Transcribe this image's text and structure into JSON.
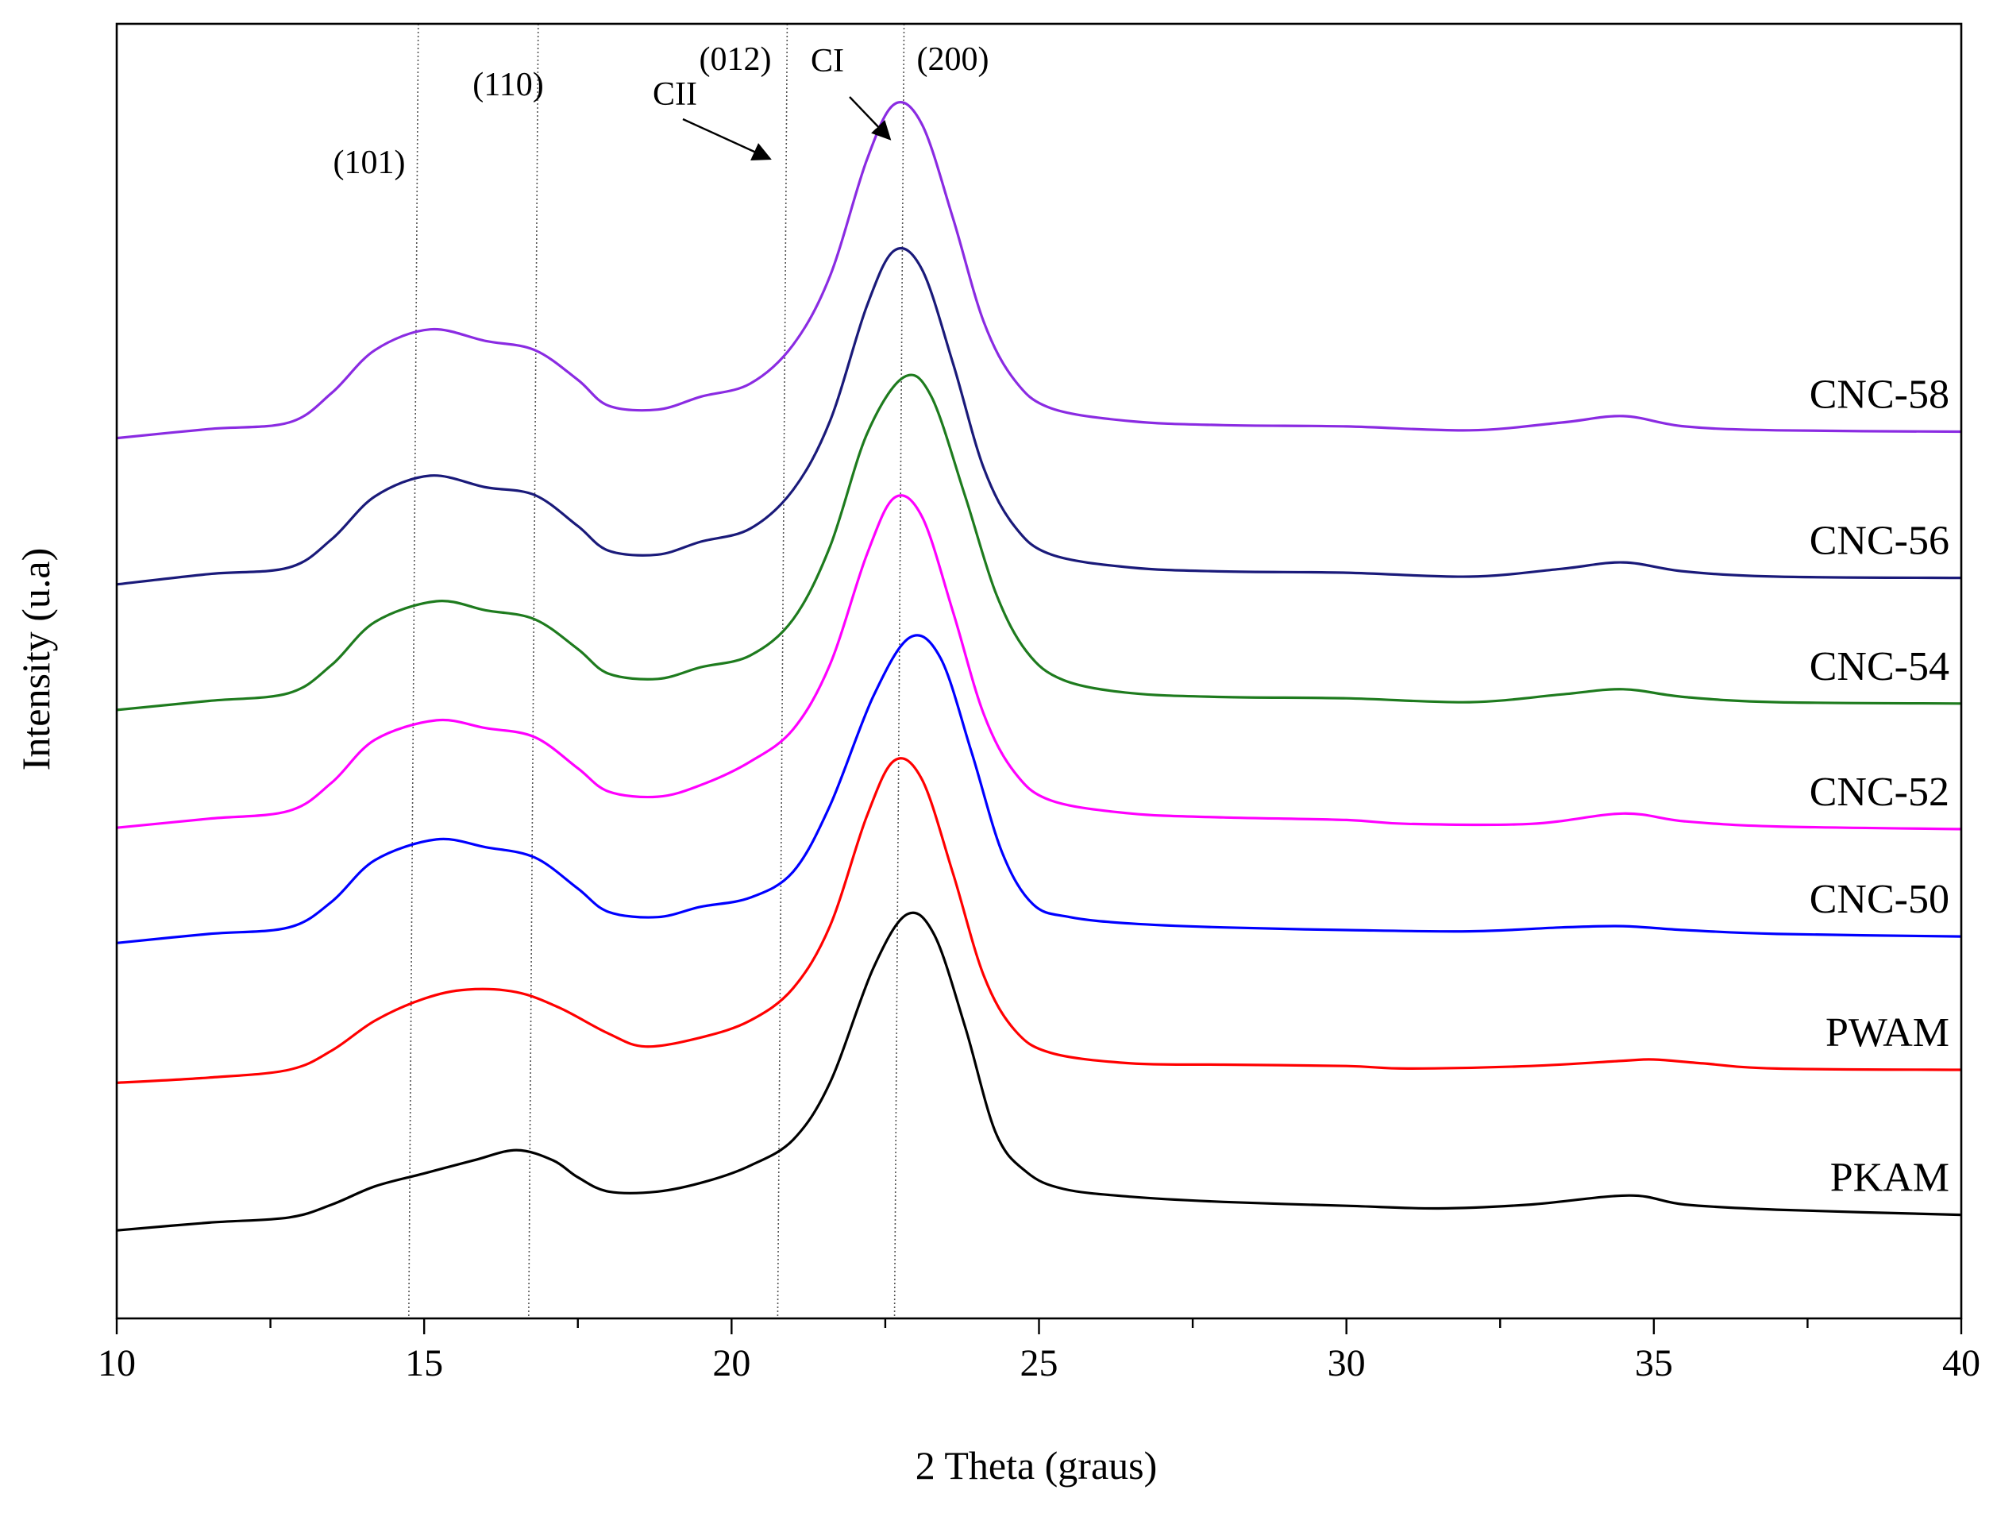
{
  "chart_data": {
    "type": "line",
    "title": "",
    "xlabel": "2 Theta (graus)",
    "ylabel": "Intensity (u.a)",
    "xlim": [
      10,
      40
    ],
    "ylim": [
      0,
      10
    ],
    "x_ticks": [
      10,
      15,
      20,
      25,
      30,
      35,
      40
    ],
    "x_tick_labels": [
      "10",
      "15",
      "20",
      "25",
      "30",
      "35",
      "40"
    ],
    "x_minor_step": 2.5,
    "grid": false,
    "legend": "labels at right end of each curve",
    "y_tick_labels_shown": false,
    "series": [
      {
        "name": "CNC-58",
        "color": "#8A2BE2",
        "points": [
          [
            10,
            6.8
          ],
          [
            11.5,
            6.87
          ],
          [
            12.8,
            6.92
          ],
          [
            13.5,
            7.15
          ],
          [
            14.2,
            7.48
          ],
          [
            15.1,
            7.64
          ],
          [
            16,
            7.55
          ],
          [
            16.8,
            7.48
          ],
          [
            17.5,
            7.25
          ],
          [
            18,
            7.05
          ],
          [
            18.8,
            7.02
          ],
          [
            19.5,
            7.12
          ],
          [
            20.3,
            7.22
          ],
          [
            21,
            7.52
          ],
          [
            21.6,
            8.05
          ],
          [
            22.2,
            8.95
          ],
          [
            22.65,
            9.38
          ],
          [
            23.1,
            9.22
          ],
          [
            23.6,
            8.5
          ],
          [
            24.1,
            7.7
          ],
          [
            24.6,
            7.25
          ],
          [
            25.2,
            7.03
          ],
          [
            26.5,
            6.93
          ],
          [
            28,
            6.9
          ],
          [
            30,
            6.89
          ],
          [
            32,
            6.86
          ],
          [
            33.5,
            6.92
          ],
          [
            34.5,
            6.97
          ],
          [
            35.5,
            6.89
          ],
          [
            37,
            6.86
          ],
          [
            40,
            6.85
          ]
        ]
      },
      {
        "name": "CNC-56",
        "color": "#1A1A7A",
        "points": [
          [
            10,
            5.67
          ],
          [
            11.5,
            5.75
          ],
          [
            12.8,
            5.8
          ],
          [
            13.5,
            6.02
          ],
          [
            14.2,
            6.35
          ],
          [
            15.1,
            6.51
          ],
          [
            16,
            6.42
          ],
          [
            16.8,
            6.36
          ],
          [
            17.5,
            6.12
          ],
          [
            18,
            5.93
          ],
          [
            18.8,
            5.9
          ],
          [
            19.5,
            6.0
          ],
          [
            20.3,
            6.1
          ],
          [
            21,
            6.4
          ],
          [
            21.6,
            6.93
          ],
          [
            22.2,
            7.82
          ],
          [
            22.65,
            8.25
          ],
          [
            23.1,
            8.1
          ],
          [
            23.6,
            7.38
          ],
          [
            24.1,
            6.57
          ],
          [
            24.6,
            6.12
          ],
          [
            25.2,
            5.9
          ],
          [
            26.5,
            5.8
          ],
          [
            28,
            5.77
          ],
          [
            30,
            5.76
          ],
          [
            32,
            5.73
          ],
          [
            33.5,
            5.79
          ],
          [
            34.5,
            5.84
          ],
          [
            35.5,
            5.77
          ],
          [
            37,
            5.73
          ],
          [
            40,
            5.72
          ]
        ]
      },
      {
        "name": "CNC-54",
        "color": "#1E7B1E",
        "points": [
          [
            10,
            4.7
          ],
          [
            11.5,
            4.77
          ],
          [
            12.8,
            4.83
          ],
          [
            13.5,
            5.05
          ],
          [
            14.2,
            5.38
          ],
          [
            15.2,
            5.54
          ],
          [
            16,
            5.47
          ],
          [
            16.8,
            5.4
          ],
          [
            17.5,
            5.17
          ],
          [
            18,
            4.98
          ],
          [
            18.8,
            4.94
          ],
          [
            19.5,
            5.03
          ],
          [
            20.3,
            5.12
          ],
          [
            21,
            5.4
          ],
          [
            21.6,
            5.96
          ],
          [
            22.2,
            6.83
          ],
          [
            22.8,
            7.27
          ],
          [
            23.25,
            7.12
          ],
          [
            23.8,
            6.35
          ],
          [
            24.3,
            5.6
          ],
          [
            24.8,
            5.15
          ],
          [
            25.4,
            4.93
          ],
          [
            26.5,
            4.83
          ],
          [
            28,
            4.8
          ],
          [
            30,
            4.79
          ],
          [
            32,
            4.76
          ],
          [
            33.5,
            4.82
          ],
          [
            34.5,
            4.86
          ],
          [
            35.5,
            4.8
          ],
          [
            37,
            4.76
          ],
          [
            40,
            4.75
          ]
        ]
      },
      {
        "name": "CNC-52",
        "color": "#FF00FF",
        "points": [
          [
            10,
            3.79
          ],
          [
            11.5,
            3.86
          ],
          [
            12.8,
            3.92
          ],
          [
            13.5,
            4.14
          ],
          [
            14.2,
            4.47
          ],
          [
            15.2,
            4.62
          ],
          [
            16,
            4.56
          ],
          [
            16.8,
            4.49
          ],
          [
            17.5,
            4.25
          ],
          [
            18,
            4.07
          ],
          [
            18.8,
            4.03
          ],
          [
            19.5,
            4.12
          ],
          [
            20.3,
            4.3
          ],
          [
            21,
            4.55
          ],
          [
            21.6,
            5.05
          ],
          [
            22.2,
            5.9
          ],
          [
            22.65,
            6.34
          ],
          [
            23.1,
            6.19
          ],
          [
            23.6,
            5.46
          ],
          [
            24.1,
            4.67
          ],
          [
            24.6,
            4.22
          ],
          [
            25.2,
            4.0
          ],
          [
            26.5,
            3.9
          ],
          [
            28,
            3.87
          ],
          [
            30,
            3.85
          ],
          [
            31,
            3.82
          ],
          [
            33,
            3.82
          ],
          [
            34.5,
            3.9
          ],
          [
            35.5,
            3.84
          ],
          [
            37,
            3.8
          ],
          [
            40,
            3.78
          ]
        ]
      },
      {
        "name": "CNC-50",
        "color": "#0000FF",
        "points": [
          [
            10,
            2.9
          ],
          [
            11.5,
            2.97
          ],
          [
            12.8,
            3.02
          ],
          [
            13.5,
            3.22
          ],
          [
            14.2,
            3.54
          ],
          [
            15.2,
            3.7
          ],
          [
            16,
            3.64
          ],
          [
            16.8,
            3.56
          ],
          [
            17.5,
            3.32
          ],
          [
            18,
            3.14
          ],
          [
            18.8,
            3.1
          ],
          [
            19.5,
            3.18
          ],
          [
            20.3,
            3.25
          ],
          [
            21,
            3.45
          ],
          [
            21.6,
            3.96
          ],
          [
            22.3,
            4.8
          ],
          [
            22.9,
            5.26
          ],
          [
            23.4,
            5.1
          ],
          [
            23.9,
            4.38
          ],
          [
            24.4,
            3.6
          ],
          [
            24.9,
            3.2
          ],
          [
            25.5,
            3.1
          ],
          [
            26.5,
            3.05
          ],
          [
            28,
            3.02
          ],
          [
            30,
            3.0
          ],
          [
            32,
            2.99
          ],
          [
            33.5,
            3.02
          ],
          [
            34.5,
            3.03
          ],
          [
            35.5,
            3.0
          ],
          [
            37,
            2.97
          ],
          [
            40,
            2.95
          ]
        ]
      },
      {
        "name": "PWAM",
        "color": "#FF0000",
        "points": [
          [
            10,
            1.82
          ],
          [
            11.5,
            1.86
          ],
          [
            12.8,
            1.92
          ],
          [
            13.5,
            2.07
          ],
          [
            14.2,
            2.3
          ],
          [
            15,
            2.47
          ],
          [
            15.7,
            2.54
          ],
          [
            16.5,
            2.52
          ],
          [
            17.2,
            2.4
          ],
          [
            18,
            2.2
          ],
          [
            18.6,
            2.1
          ],
          [
            19.5,
            2.17
          ],
          [
            20.3,
            2.3
          ],
          [
            21,
            2.55
          ],
          [
            21.6,
            3.03
          ],
          [
            22.2,
            3.88
          ],
          [
            22.65,
            4.31
          ],
          [
            23.1,
            4.16
          ],
          [
            23.6,
            3.44
          ],
          [
            24.1,
            2.65
          ],
          [
            24.6,
            2.23
          ],
          [
            25.2,
            2.05
          ],
          [
            26.5,
            1.97
          ],
          [
            28,
            1.96
          ],
          [
            30,
            1.95
          ],
          [
            31,
            1.93
          ],
          [
            33,
            1.95
          ],
          [
            34.5,
            1.99
          ],
          [
            35,
            2.0
          ],
          [
            35.8,
            1.97
          ],
          [
            37,
            1.93
          ],
          [
            40,
            1.92
          ]
        ]
      },
      {
        "name": "PKAM",
        "color": "#000000",
        "points": [
          [
            10,
            0.68
          ],
          [
            11.5,
            0.74
          ],
          [
            12.8,
            0.78
          ],
          [
            13.5,
            0.88
          ],
          [
            14.2,
            1.02
          ],
          [
            15,
            1.12
          ],
          [
            15.8,
            1.22
          ],
          [
            16.5,
            1.3
          ],
          [
            17.1,
            1.22
          ],
          [
            17.5,
            1.09
          ],
          [
            18,
            0.98
          ],
          [
            18.8,
            0.98
          ],
          [
            19.6,
            1.06
          ],
          [
            20.3,
            1.18
          ],
          [
            21,
            1.38
          ],
          [
            21.6,
            1.82
          ],
          [
            22.3,
            2.7
          ],
          [
            22.85,
            3.12
          ],
          [
            23.3,
            2.96
          ],
          [
            23.8,
            2.25
          ],
          [
            24.3,
            1.43
          ],
          [
            24.8,
            1.13
          ],
          [
            25.4,
            1.0
          ],
          [
            26.5,
            0.94
          ],
          [
            28,
            0.9
          ],
          [
            30,
            0.87
          ],
          [
            31.5,
            0.85
          ],
          [
            33,
            0.88
          ],
          [
            34.6,
            0.95
          ],
          [
            35.5,
            0.88
          ],
          [
            37,
            0.84
          ],
          [
            40,
            0.8
          ]
        ]
      }
    ],
    "reference_lines": [
      {
        "label": "(101)",
        "x": 14.75
      },
      {
        "label": "(110)",
        "x": 16.7
      },
      {
        "label": "(012)",
        "x": 20.75
      },
      {
        "label": "(200)",
        "x": 22.65
      }
    ],
    "arrow_annotations": [
      {
        "label": "CII",
        "points_to_x": 20.65
      },
      {
        "label": "CI",
        "points_to_x": 22.6
      }
    ]
  }
}
